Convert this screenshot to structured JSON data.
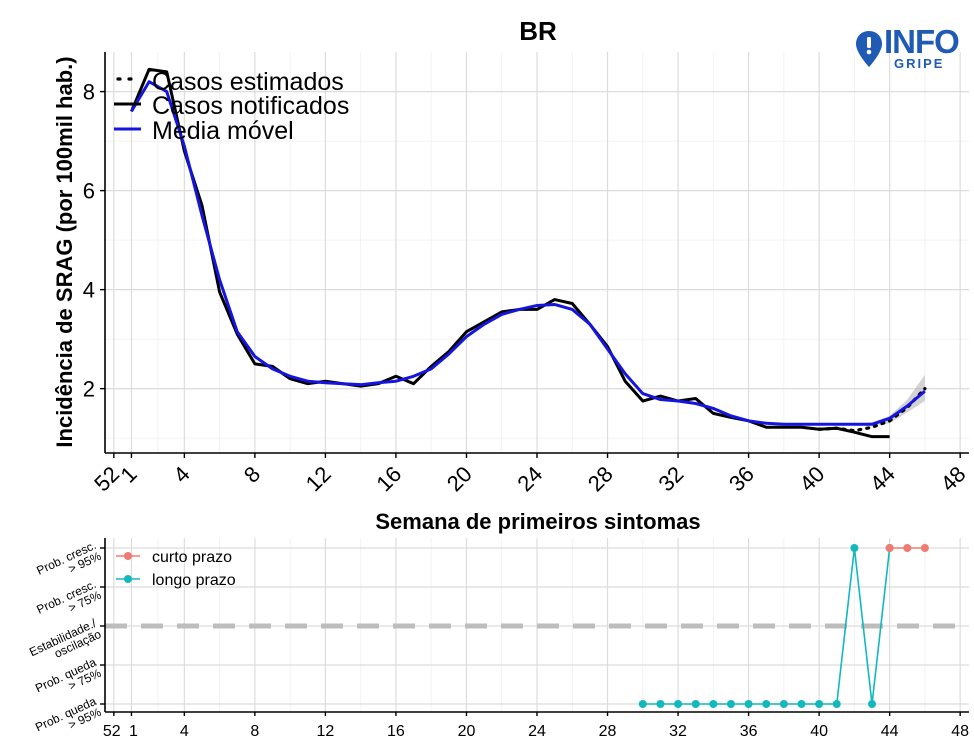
{
  "chart_data": [
    {
      "type": "line",
      "title": "BR",
      "xlabel": "Semana de primeiros sintomas",
      "ylabel": "Incidência de SRAG (por 100mil hab.)",
      "xlim": [
        -0.5,
        48.5
      ],
      "ylim": [
        0.7,
        8.8
      ],
      "x_ticks": [
        0,
        1,
        4,
        8,
        12,
        16,
        20,
        24,
        28,
        32,
        36,
        40,
        44,
        48
      ],
      "x_tick_labels": [
        "52",
        "1",
        "4",
        "8",
        "12",
        "16",
        "20",
        "24",
        "28",
        "32",
        "36",
        "40",
        "44",
        "48"
      ],
      "y_ticks": [
        2,
        4,
        6,
        8
      ],
      "y_tick_labels": [
        "2",
        "4",
        "6",
        "8"
      ],
      "legend_position": "top-left",
      "legend": [
        "Casos estimados",
        "Casos notificados",
        "Media móvel"
      ],
      "grid": true,
      "series": [
        {
          "name": "Casos notificados",
          "color": "#000000",
          "style": "solid",
          "x": [
            1,
            2,
            3,
            4,
            5,
            6,
            7,
            8,
            9,
            10,
            11,
            12,
            13,
            14,
            15,
            16,
            17,
            18,
            19,
            20,
            21,
            22,
            23,
            24,
            25,
            26,
            27,
            28,
            29,
            30,
            31,
            32,
            33,
            34,
            35,
            36,
            37,
            38,
            39,
            40,
            41,
            42,
            43,
            44
          ],
          "y": [
            7.6,
            8.45,
            8.4,
            6.8,
            5.7,
            3.95,
            3.1,
            2.5,
            2.45,
            2.2,
            2.1,
            2.15,
            2.1,
            2.05,
            2.1,
            2.25,
            2.1,
            2.45,
            2.75,
            3.15,
            3.35,
            3.55,
            3.6,
            3.6,
            3.8,
            3.72,
            3.3,
            2.85,
            2.15,
            1.75,
            1.85,
            1.75,
            1.8,
            1.5,
            1.42,
            1.35,
            1.22,
            1.22,
            1.22,
            1.18,
            1.2,
            1.12,
            1.03,
            1.03
          ]
        },
        {
          "name": "Casos estimados",
          "color": "#000000",
          "style": "dotted",
          "x": [
            40,
            41,
            42,
            43,
            44,
            45,
            46
          ],
          "y": [
            1.18,
            1.2,
            1.15,
            1.22,
            1.35,
            1.62,
            2.0
          ]
        },
        {
          "name": "Media móvel",
          "color": "#1515e0",
          "style": "solid",
          "x": [
            1,
            2,
            3,
            4,
            5,
            6,
            7,
            8,
            9,
            10,
            11,
            12,
            13,
            14,
            15,
            16,
            17,
            18,
            19,
            20,
            21,
            22,
            23,
            24,
            25,
            26,
            27,
            28,
            29,
            30,
            31,
            32,
            33,
            34,
            35,
            36,
            37,
            38,
            39,
            40,
            41,
            42,
            43,
            44,
            45,
            46
          ],
          "y": [
            7.6,
            8.2,
            8.0,
            6.9,
            5.5,
            4.2,
            3.15,
            2.65,
            2.4,
            2.25,
            2.15,
            2.12,
            2.1,
            2.08,
            2.12,
            2.15,
            2.25,
            2.4,
            2.7,
            3.05,
            3.3,
            3.5,
            3.6,
            3.68,
            3.7,
            3.6,
            3.3,
            2.8,
            2.3,
            1.9,
            1.78,
            1.75,
            1.7,
            1.6,
            1.45,
            1.35,
            1.3,
            1.28,
            1.28,
            1.28,
            1.28,
            1.28,
            1.28,
            1.4,
            1.65,
            1.95
          ]
        }
      ],
      "confidence_band": {
        "color": "#9e9e9e",
        "x": [
          42,
          43,
          44,
          45,
          46
        ],
        "lower": [
          1.25,
          1.25,
          1.3,
          1.52,
          1.75
        ],
        "upper": [
          1.3,
          1.32,
          1.45,
          1.78,
          2.28
        ]
      }
    },
    {
      "type": "line",
      "x_ticks": [
        0,
        1,
        4,
        8,
        12,
        16,
        20,
        24,
        28,
        32,
        36,
        40,
        44,
        48
      ],
      "x_tick_labels": [
        "52",
        "1",
        "4",
        "8",
        "12",
        "16",
        "20",
        "24",
        "28",
        "32",
        "36",
        "40",
        "44",
        "48"
      ],
      "y_levels": [
        -2,
        -1,
        0,
        1,
        2
      ],
      "y_tick_labels": [
        "Prob. queda > 95%",
        "Prob. queda > 75%",
        "Estabilidade./ oscilação",
        "Prob. cresc. > 75%",
        "Prob. cresc. > 95%"
      ],
      "reference_line": 0,
      "legend_position": "top-left",
      "legend": [
        "curto prazo",
        "longo prazo"
      ],
      "grid": true,
      "series": [
        {
          "name": "curto prazo",
          "color": "#f07b72",
          "x": [
            44,
            45,
            46
          ],
          "y": [
            2,
            2,
            2
          ]
        },
        {
          "name": "longo prazo",
          "color": "#13b8bf",
          "x": [
            30,
            31,
            32,
            33,
            34,
            35,
            36,
            37,
            38,
            39,
            40,
            41,
            42,
            43,
            44
          ],
          "y": [
            -2,
            -2,
            -2,
            -2,
            -2,
            -2,
            -2,
            -2,
            -2,
            -2,
            -2,
            -2,
            2,
            -2,
            2
          ]
        }
      ]
    }
  ],
  "logo": {
    "text_main": "INFO",
    "text_sub": "GRIPE",
    "color": "#1f5bb5"
  }
}
